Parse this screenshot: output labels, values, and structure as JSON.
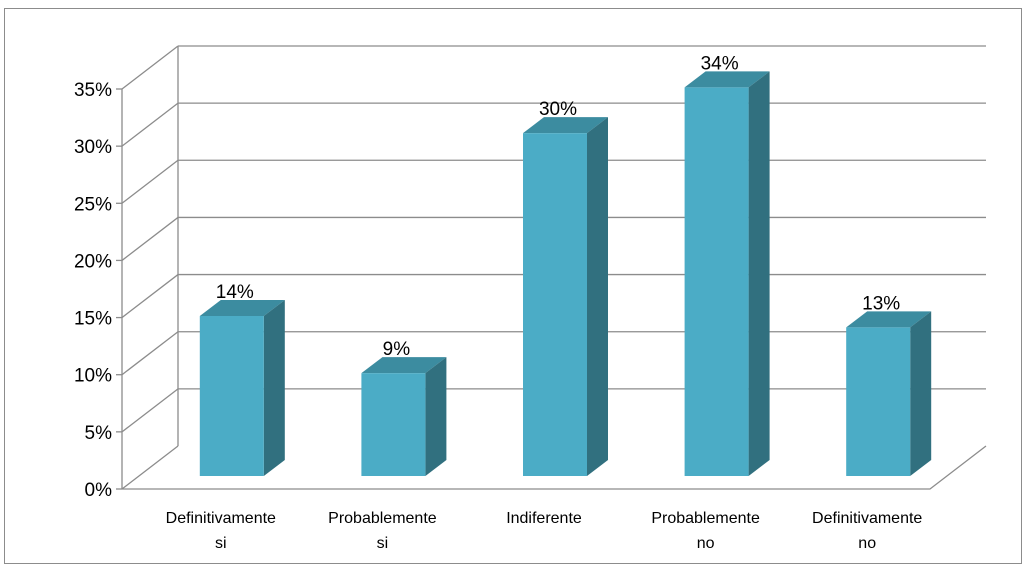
{
  "chart_data": {
    "type": "bar",
    "categories": [
      [
        "Definitivamente",
        "si"
      ],
      [
        "Probablemente",
        "si"
      ],
      [
        "Indiferente"
      ],
      [
        "Probablemente",
        "no"
      ],
      [
        "Definitivamente",
        "no"
      ]
    ],
    "values": [
      14,
      9,
      30,
      34,
      13
    ],
    "data_labels": [
      "14%",
      "9%",
      "30%",
      "34%",
      "13%"
    ],
    "y_ticks": [
      "0%",
      "5%",
      "10%",
      "15%",
      "20%",
      "25%",
      "30%",
      "35%"
    ],
    "ylim": [
      0,
      35
    ],
    "grid": true,
    "legend": "none",
    "colors": {
      "bar_front": "#4BACC6",
      "bar_side": "#31707F",
      "bar_top": "#3C8CA0",
      "gridline": "#8c8c8c"
    }
  }
}
